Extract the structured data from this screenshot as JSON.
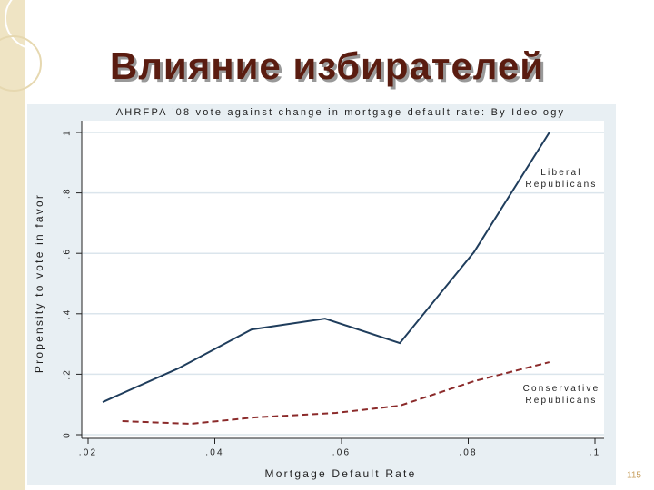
{
  "slide_title": "Влияние избирателей",
  "page_number": "115",
  "chart_data": {
    "type": "line",
    "title": "AHRFPA '08 vote against change in mortgage default rate: By Ideology",
    "x_label": "Mortgage Default Rate",
    "y_label": "Propensity to vote in favor",
    "xlim": [
      0.02,
      0.1
    ],
    "ylim": [
      0,
      1
    ],
    "xticks": [
      {
        "value": 0.02,
        "label": ".02"
      },
      {
        "value": 0.04,
        "label": ".04"
      },
      {
        "value": 0.06,
        "label": ".06"
      },
      {
        "value": 0.08,
        "label": ".08"
      },
      {
        "value": 0.1,
        "label": ".1"
      }
    ],
    "yticks": [
      0,
      {
        "value": 0.2,
        "label": ".2"
      },
      {
        "value": 0.4,
        "label": ".4"
      },
      {
        "value": 0.6,
        "label": ".6"
      },
      {
        "value": 0.8,
        "label": ".8"
      },
      1
    ],
    "grid": true,
    "series": [
      {
        "name": "Liberal Republicans",
        "color": "#1f3d5c",
        "dash": false,
        "x": [
          0.0223,
          0.0342,
          0.0458,
          0.0574,
          0.0692,
          0.0809,
          0.0928
        ],
        "values": [
          0.108,
          0.219,
          0.348,
          0.384,
          0.303,
          0.604,
          1.0
        ]
      },
      {
        "name": "Conservative Republicans",
        "color": "#8b2a2a",
        "dash": true,
        "x": [
          0.0254,
          0.0362,
          0.0462,
          0.0591,
          0.0692,
          0.0809,
          0.0928
        ],
        "values": [
          0.045,
          0.036,
          0.057,
          0.072,
          0.096,
          0.177,
          0.24
        ]
      }
    ]
  }
}
